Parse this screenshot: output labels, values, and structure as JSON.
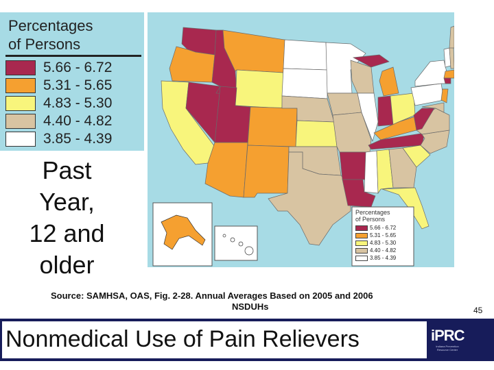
{
  "legend": {
    "title_line1": "Percentages",
    "title_line2": "of Persons",
    "items": [
      {
        "label": "5.66 - 6.72",
        "color": "#a8284f"
      },
      {
        "label": "5.31 - 5.65",
        "color": "#f5a030"
      },
      {
        "label": "4.83 - 5.30",
        "color": "#f8f57c"
      },
      {
        "label": "4.40 - 4.82",
        "color": "#d8c4a2"
      },
      {
        "label": "3.85 - 4.39",
        "color": "#ffffff"
      }
    ]
  },
  "caption": {
    "line1": "Past",
    "line2": "Year,",
    "line3": "12 and",
    "line4": "older"
  },
  "map_legend": {
    "title_line1": "Percentages",
    "title_line2": "of Persons",
    "items": [
      {
        "label": "5.66 - 6.72",
        "color": "#a8284f"
      },
      {
        "label": "5.31 - 5.65",
        "color": "#f5a030"
      },
      {
        "label": "4.83 - 5.30",
        "color": "#f8f57c"
      },
      {
        "label": "4.40 - 4.82",
        "color": "#d8c4a2"
      },
      {
        "label": "3.85 - 4.39",
        "color": "#ffffff"
      }
    ]
  },
  "source": {
    "line1": "Source:  SAMHSA, OAS, Fig. 2-28.    Annual Averages Based on 2005 and 2006",
    "line2": "NSDUHs"
  },
  "page_number": "45",
  "banner": {
    "title": "Nonmedical Use of Pain Relievers",
    "background": "#171c5a"
  },
  "logo": {
    "text": "iPRC",
    "sub": "Indiana Prevention Resource Center"
  },
  "colors": {
    "water": "#a7dbe5",
    "dark_red": "#a8284f",
    "orange": "#f5a030",
    "yellow": "#f8f57c",
    "tan": "#d8c4a2",
    "white": "#ffffff"
  }
}
